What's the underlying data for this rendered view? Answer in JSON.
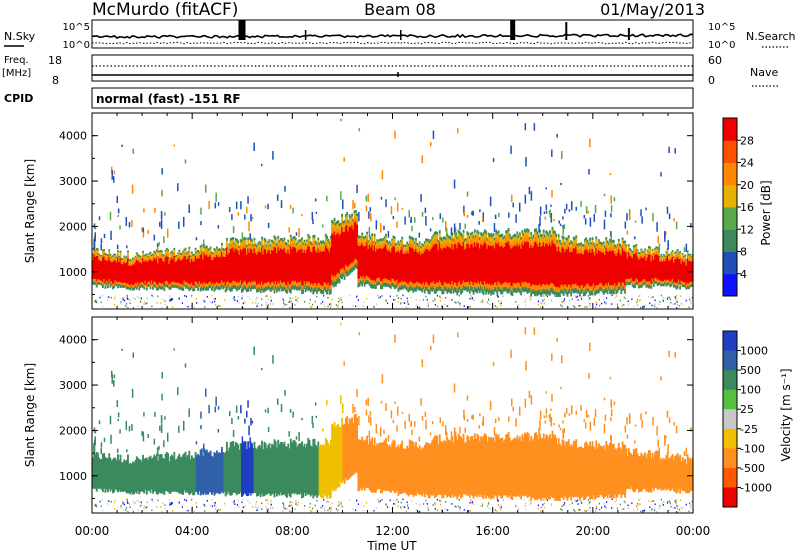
{
  "header": {
    "station": "McMurdo (fitACF)",
    "beam": "Beam 08",
    "date": "01/May/2013"
  },
  "noise_panel": {
    "left_label": "N.Sky",
    "right_label": "N.Search",
    "tick_top": "10^5",
    "tick_bottom": "10^0"
  },
  "freq_panel": {
    "label_top": "Freq.",
    "label_unit": "[MHz]",
    "left_ticks": [
      "18",
      "8"
    ],
    "right_ticks": [
      "60",
      "0"
    ],
    "right_label": "Nave"
  },
  "cpid": {
    "label": "CPID",
    "value": "normal (fast) -151 RF"
  },
  "chart_data": [
    {
      "type": "heatmap",
      "title": "",
      "xlabel": "",
      "ylabel": "Slant Range [km]",
      "x_ticks": [],
      "y_ticks": [
        "1000",
        "2000",
        "3000",
        "4000"
      ],
      "xlim_hours": [
        0,
        24
      ],
      "ylim_km": [
        180,
        4500
      ],
      "colorbar": {
        "label": "Power [dB]",
        "ticks": [
          "4",
          "8",
          "12",
          "16",
          "20",
          "24",
          "28"
        ],
        "range": [
          0,
          32
        ],
        "colors": [
          "#1010ff",
          "#1f4fb8",
          "#3c8a5c",
          "#5aaa4a",
          "#e8b000",
          "#ff8800",
          "#ff5000",
          "#ee0000"
        ]
      },
      "bands": [
        {
          "t0": 0.0,
          "t1": 1.8,
          "lower": [
            700,
            600
          ],
          "upper": [
            1450,
            1350
          ]
        },
        {
          "t0": 1.8,
          "t1": 5.3,
          "lower": [
            650,
            600
          ],
          "upper": [
            1350,
            1550
          ]
        },
        {
          "t0": 5.3,
          "t1": 9.5,
          "lower": [
            600,
            550
          ],
          "upper": [
            1650,
            1750
          ]
        },
        {
          "t0": 9.5,
          "t1": 10.6,
          "lower": [
            650,
            1100
          ],
          "upper": [
            2100,
            2300
          ]
        },
        {
          "t0": 10.6,
          "t1": 13.5,
          "lower": [
            700,
            550
          ],
          "upper": [
            1800,
            1650
          ]
        },
        {
          "t0": 13.5,
          "t1": 18.5,
          "lower": [
            550,
            500
          ],
          "upper": [
            1800,
            1900
          ]
        },
        {
          "t0": 18.5,
          "t1": 21.3,
          "lower": [
            500,
            550
          ],
          "upper": [
            1750,
            1650
          ]
        },
        {
          "t0": 21.3,
          "t1": 24.0,
          "lower": [
            700,
            650
          ],
          "upper": [
            1550,
            1350
          ]
        }
      ]
    },
    {
      "type": "heatmap",
      "title": "",
      "xlabel": "Time UT",
      "ylabel": "Slant Range [km]",
      "x_ticks": [
        "00:00",
        "04:00",
        "08:00",
        "12:00",
        "16:00",
        "20:00",
        "00:00"
      ],
      "y_ticks": [
        "1000",
        "2000",
        "3000",
        "4000"
      ],
      "xlim_hours": [
        0,
        24
      ],
      "ylim_km": [
        180,
        4500
      ],
      "colorbar": {
        "label": "Velocity [m s⁻¹]",
        "ticks": [
          "1000",
          "500",
          "100",
          "25",
          "-25",
          "-100",
          "-500",
          "-1000"
        ],
        "colors": [
          "#1f3fc0",
          "#3060a8",
          "#3a8a5e",
          "#55c040",
          "#c8c8c8",
          "#f0c000",
          "#ff9020",
          "#ff5a00",
          "#ee0000"
        ]
      },
      "velocity_segments": [
        {
          "t0": 0.0,
          "t1": 4.1,
          "sign": "positive",
          "color": "#3a8a5e"
        },
        {
          "t0": 4.1,
          "t1": 5.2,
          "sign": "positive",
          "color": "#3060a8"
        },
        {
          "t0": 5.2,
          "t1": 5.9,
          "sign": "positive",
          "color": "#3a8a5e"
        },
        {
          "t0": 5.9,
          "t1": 6.4,
          "sign": "positive",
          "color": "#1f3fc0"
        },
        {
          "t0": 6.4,
          "t1": 9.0,
          "sign": "positive",
          "color": "#3a8a5e"
        },
        {
          "t0": 9.0,
          "t1": 10.0,
          "sign": "mixed",
          "color": "#f0c000"
        },
        {
          "t0": 10.0,
          "t1": 24.0,
          "sign": "negative",
          "color": "#ff9020"
        }
      ]
    }
  ]
}
